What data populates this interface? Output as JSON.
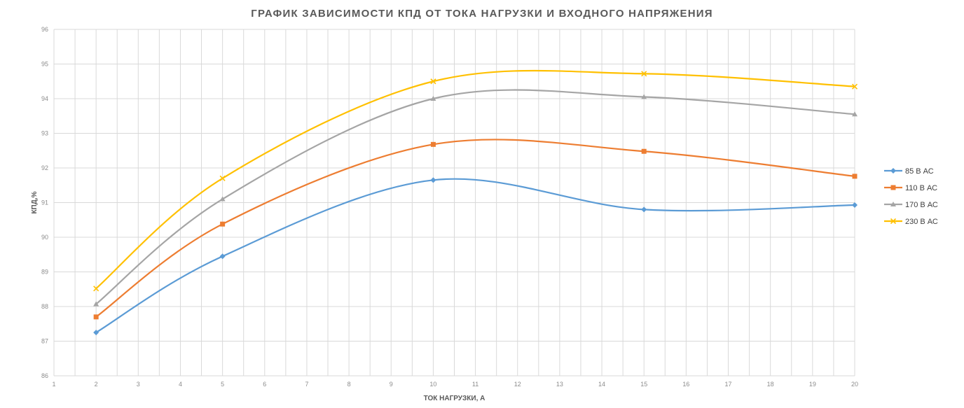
{
  "chart_data": {
    "type": "line",
    "title": "ГРАФИК ЗАВИСИМОСТИ КПД ОТ ТОКА НАГРУЗКИ И ВХОДНОГО НАПРЯЖЕНИЯ",
    "xlabel": "ТОК НАГРУЗКИ, А",
    "ylabel": "КПД,%",
    "xlim": [
      1,
      20
    ],
    "ylim": [
      86,
      96
    ],
    "x_ticks": [
      "1",
      "2",
      "3",
      "4",
      "5",
      "6",
      "7",
      "8",
      "9",
      "10",
      "11",
      "12",
      "13",
      "14",
      "15",
      "16",
      "17",
      "18",
      "19",
      "20"
    ],
    "y_ticks": [
      "86",
      "87",
      "88",
      "89",
      "90",
      "91",
      "92",
      "93",
      "94",
      "95",
      "96"
    ],
    "grid": true,
    "smooth": true,
    "legend_position": "right",
    "x": [
      2,
      5,
      10,
      15,
      20
    ],
    "series": [
      {
        "name": "85 В АС",
        "color": "#5b9bd5",
        "marker": "diamond",
        "values": [
          87.25,
          89.45,
          91.65,
          90.8,
          90.93
        ]
      },
      {
        "name": "110 В АС",
        "color": "#ed7d31",
        "marker": "square",
        "values": [
          87.7,
          90.38,
          92.68,
          92.48,
          91.76
        ]
      },
      {
        "name": "170 В АС",
        "color": "#a5a5a5",
        "marker": "triangle",
        "values": [
          88.07,
          91.1,
          94.0,
          94.05,
          93.55
        ]
      },
      {
        "name": "230 В АС",
        "color": "#ffc000",
        "marker": "cross",
        "values": [
          88.52,
          91.7,
          94.5,
          94.72,
          94.35
        ]
      }
    ]
  }
}
